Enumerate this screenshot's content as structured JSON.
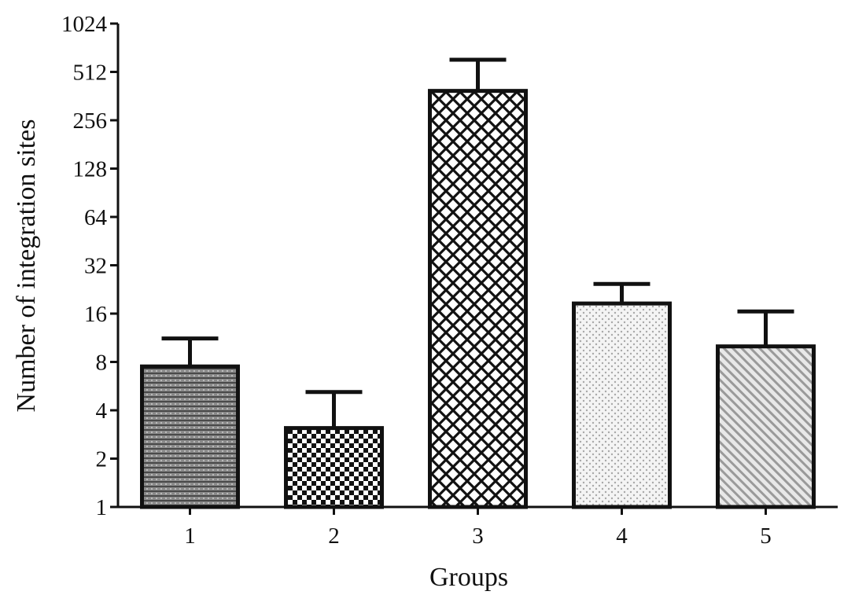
{
  "chart_data": {
    "type": "bar",
    "title": "",
    "xlabel": "Groups",
    "ylabel": "Number of integration sites",
    "y_scale": "log2",
    "ylim": [
      1,
      1024
    ],
    "y_ticks": [
      1,
      2,
      4,
      8,
      16,
      32,
      64,
      128,
      256,
      512,
      1024
    ],
    "y_tick_labels": [
      "1",
      "2",
      "4",
      "8",
      "16",
      "32",
      "64",
      "128",
      "256",
      "512",
      "1024"
    ],
    "categories": [
      "1",
      "2",
      "3",
      "4",
      "5"
    ],
    "values": [
      7.5,
      3.1,
      390,
      18.5,
      10
    ],
    "error_upper": [
      11.2,
      5.2,
      610,
      24.5,
      16.5
    ],
    "bar_patterns": [
      "horizontal-stripes-dense",
      "checkerboard",
      "diamond-crosshatch",
      "light-dots",
      "diagonal-hatch"
    ],
    "grid": false,
    "legend": "none"
  }
}
